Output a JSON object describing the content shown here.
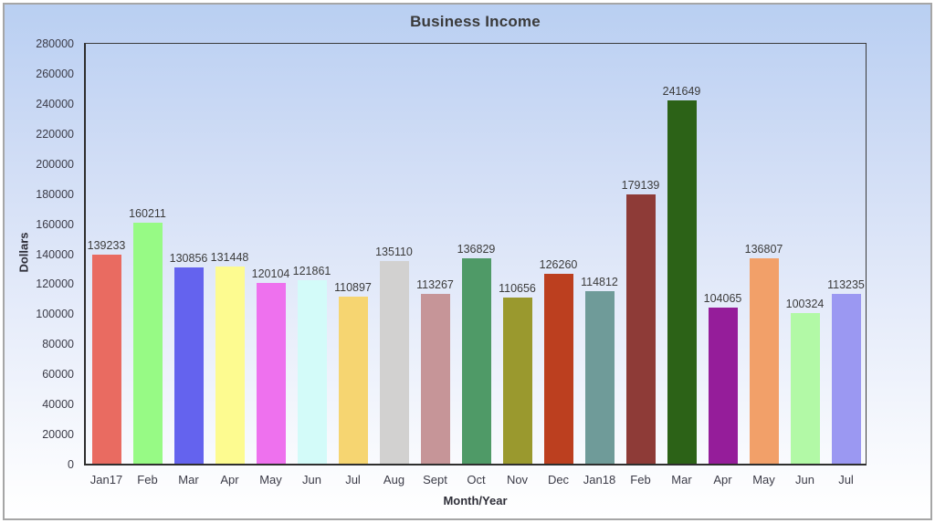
{
  "chart_data": {
    "type": "bar",
    "title": "Business Income",
    "xlabel": "Month/Year",
    "ylabel": "Dollars",
    "ylim": [
      0,
      280000
    ],
    "ytick_step": 20000,
    "grid": false,
    "legend": "none",
    "categories": [
      "Jan17",
      "Feb",
      "Mar",
      "Apr",
      "May",
      "Jun",
      "Jul",
      "Aug",
      "Sept",
      "Oct",
      "Nov",
      "Dec",
      "Jan18",
      "Feb",
      "Mar",
      "Apr",
      "May",
      "Jun",
      "Jul"
    ],
    "values": [
      139233,
      160211,
      130856,
      131448,
      120104,
      121861,
      110897,
      135110,
      113267,
      136829,
      110656,
      126260,
      114812,
      179139,
      241649,
      104065,
      136807,
      100324,
      113235
    ],
    "bar_colors": [
      "#e96b61",
      "#97fa85",
      "#6463ee",
      "#fdfb90",
      "#ee71ee",
      "#d3fbf9",
      "#f6d571",
      "#d2d1d0",
      "#c69598",
      "#4f9a67",
      "#9a992e",
      "#bc3f1f",
      "#6f9b99",
      "#8e3b37",
      "#2c6217",
      "#951d9a",
      "#f2a069",
      "#b2f9a6",
      "#9b98f2"
    ]
  },
  "colors": {
    "background_top": "#b9cff2",
    "background_bottom": "#ffffff",
    "outer_border": "#a6a6a6",
    "plot_frame": "#2e2e2e",
    "text": "#3a3a3a"
  }
}
